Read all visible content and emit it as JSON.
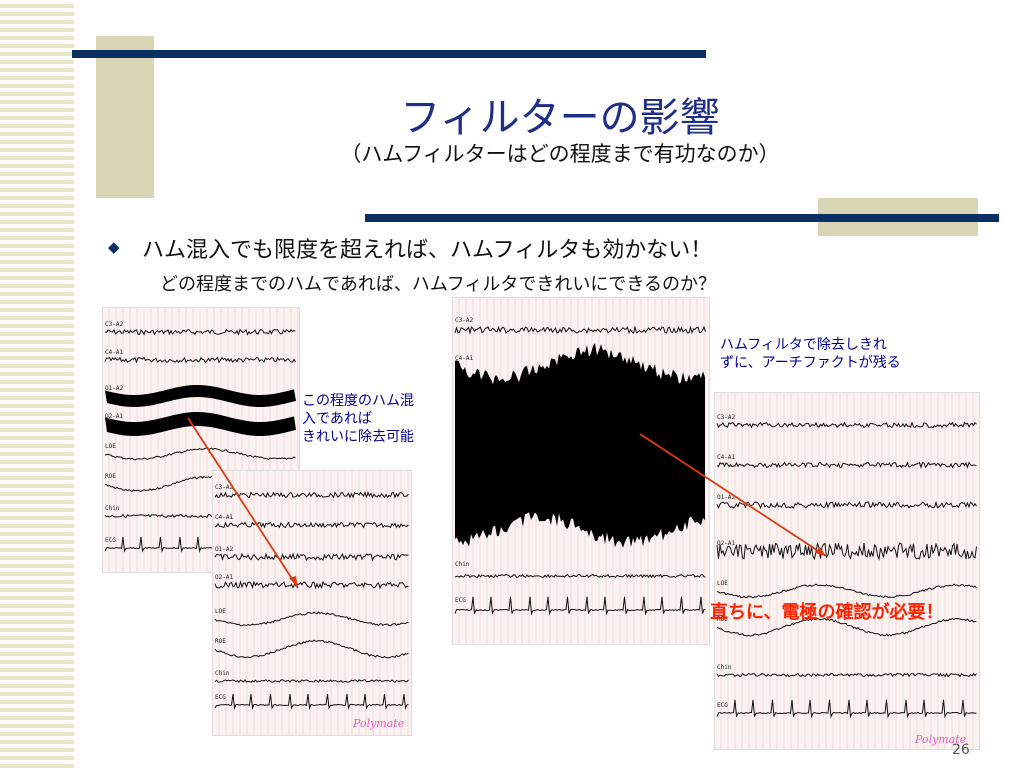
{
  "slide": {
    "title": "フィルターの影響",
    "subtitle": "（ハムフィルターはどの程度まで有功なのか）",
    "bullet": "ハム混入でも限度を超えれば、ハムフィルタも効かない！",
    "sub_bullet": "どの程度までのハムであれば、ハムフィルタできれいにできるのか？",
    "note_left": [
      "この程度のハム混",
      "入であれば",
      "きれいに除去可能"
    ],
    "note_right": [
      "ハムフィルタで除去しきれ",
      "ずに、アーチファクトが残る"
    ],
    "warning": "直ちに、電極の確認が必要！",
    "page_number": "26"
  },
  "panels": {
    "top_left": {
      "channels": [
        "C3-A2",
        "C4-A1",
        "O1-A2",
        "O2-A1",
        "LOE",
        "ROE",
        "Chin",
        "ECG"
      ]
    },
    "bottom_left": {
      "channels": [
        "C3-A2",
        "C4-A1",
        "O1-A2",
        "O2-A1",
        "LOE",
        "ROE",
        "Chin",
        "ECG"
      ],
      "brand": "Polymate"
    },
    "center": {
      "channels": [
        "C3-A2",
        "C4-A1",
        "Chin",
        "ECG"
      ]
    },
    "right": {
      "channels": [
        "C3-A2",
        "C4-A1",
        "O1-A2",
        "O2-A1",
        "LOE",
        "ROE",
        "Chin",
        "ECG"
      ],
      "brand": "Polymate"
    }
  },
  "colors": {
    "navy": "#0c2f63",
    "tan": "#d8d5b5",
    "title": "#1f2f86",
    "note": "#00008b",
    "warning": "#ff2200",
    "arrow": "#e03a10"
  }
}
